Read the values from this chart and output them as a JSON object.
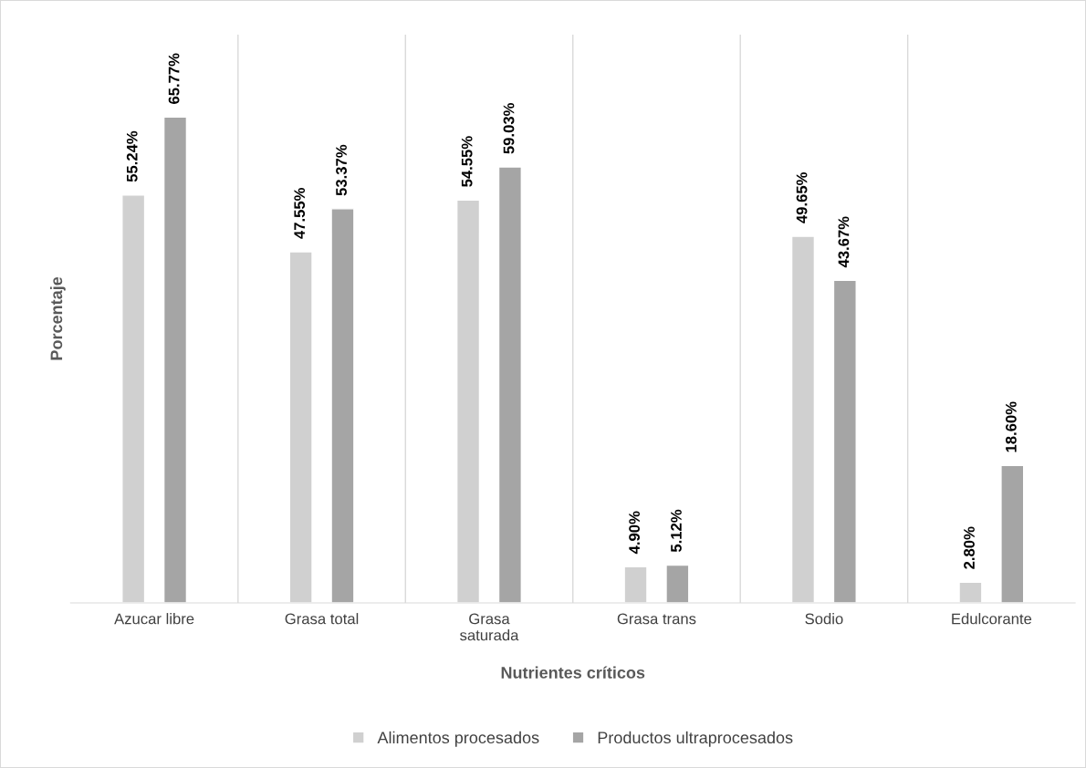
{
  "chart_data": {
    "type": "bar",
    "categories": [
      "Azucar libre",
      "Grasa total",
      "Grasa\nsaturada",
      "Grasa trans",
      "Sodio",
      "Edulcorante"
    ],
    "xlabel": "Nutrientes críticos",
    "ylabel": "Porcentaje",
    "series": [
      {
        "name": "Alimentos procesados",
        "color": "#d0d0d0",
        "values": [
          55.24,
          47.55,
          54.55,
          4.9,
          49.65,
          2.8
        ],
        "value_labels": [
          "55.24%",
          "47.55%",
          "54.55%",
          "4.90%",
          "49.65%",
          "2.80%"
        ]
      },
      {
        "name": "Productos ultraprocesados",
        "color": "#a5a5a5",
        "values": [
          65.77,
          53.37,
          59.03,
          5.12,
          43.67,
          18.6
        ],
        "value_labels": [
          "65.77%",
          "53.37%",
          "59.03%",
          "5.12%",
          "43.67%",
          "18.60%"
        ]
      }
    ],
    "grid": "x",
    "legend": "bottom"
  }
}
